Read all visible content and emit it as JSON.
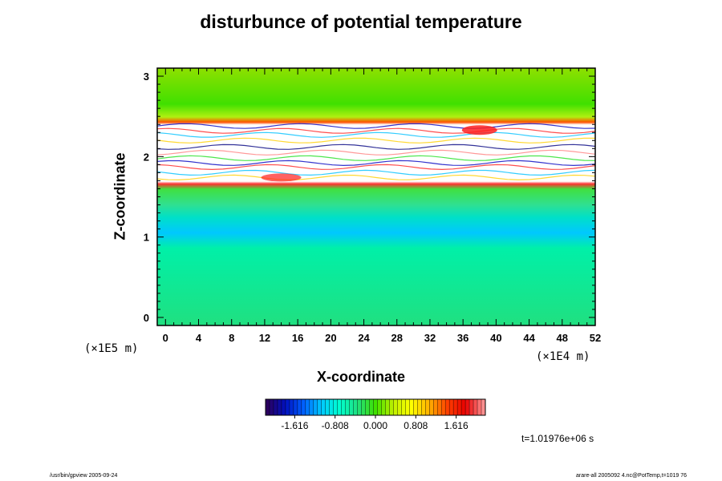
{
  "chart_data": {
    "type": "heatmap",
    "title": "disturbunce of potential temperature",
    "xlabel": "X-coordinate",
    "ylabel": "Z-coordinate",
    "x_unit": "(×1E4 m)",
    "y_unit": "(×1E5 m)",
    "xlim": [
      -1,
      52
    ],
    "ylim": [
      -0.1,
      3.1
    ],
    "x_ticks": [
      "0",
      "4",
      "8",
      "12",
      "16",
      "20",
      "24",
      "28",
      "32",
      "36",
      "40",
      "44",
      "48",
      "52"
    ],
    "y_ticks": [
      "0",
      "1",
      "2",
      "3"
    ],
    "colorbar": {
      "range": [
        -2.2,
        2.2
      ],
      "tick_labels": [
        "-1.616",
        "-0.808",
        "0.000",
        "0.808",
        "1.616"
      ],
      "tick_values": [
        -1.616,
        -0.808,
        0.0,
        0.808,
        1.616
      ],
      "colormap": [
        "#2a0060",
        "#0010c0",
        "#0060ff",
        "#00c8ff",
        "#00ffd0",
        "#20e080",
        "#40e000",
        "#c0f000",
        "#ffff00",
        "#ffb000",
        "#ff4000",
        "#e80000",
        "#ff9090"
      ]
    },
    "field_bands": [
      {
        "z_range": [
          -0.1,
          0.8
        ],
        "value": 0.0,
        "description": "green"
      },
      {
        "z_range": [
          0.8,
          1.3
        ],
        "value": -0.5,
        "description": "cyan"
      },
      {
        "z_range": [
          1.3,
          1.65
        ],
        "value": 0.0,
        "description": "green"
      },
      {
        "z_range": [
          1.65,
          2.42
        ],
        "value": 2.2,
        "description": "unresolved / saturated (white, red fringes)"
      },
      {
        "z_range": [
          2.42,
          3.1
        ],
        "value": 0.3,
        "description": "yellow-green"
      }
    ],
    "grid": false
  },
  "time_label": "t=1.01976e+06 s",
  "footer_left": "/usr/bin/gpview 2005-09-24",
  "footer_right": "arare-all 2005092 4.nc@PotTemp,t=1019 76"
}
